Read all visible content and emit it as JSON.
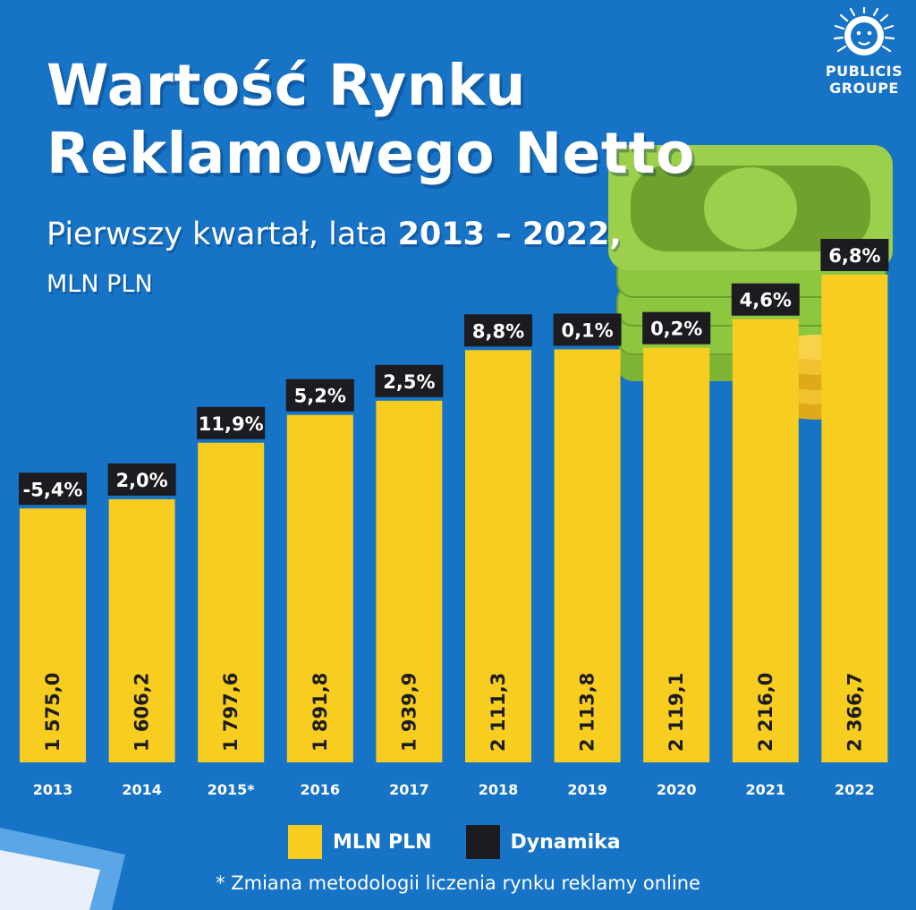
{
  "header": {
    "title_line1": "Wartość Rynku",
    "title_line2": "Reklamowego Netto",
    "subtitle_prefix": "Pierwszy kwartał, lata ",
    "subtitle_years": "2013 – 2022,",
    "unit": "MLN PLN"
  },
  "brand": {
    "line1": "PUBLICIS",
    "line2": "GROUPE",
    "logo_icon": "lion-head-icon"
  },
  "colors": {
    "background": "#1673c6",
    "bar": "#f7cd1f",
    "label_box": "#1c1c20",
    "text": "#ffffff",
    "money_green": "#8dc63f"
  },
  "chart_data": {
    "type": "bar",
    "categories": [
      "2013",
      "2014",
      "2015*",
      "2016",
      "2017",
      "2018",
      "2019",
      "2020",
      "2021",
      "2022"
    ],
    "series": [
      {
        "name": "MLN PLN",
        "values": [
          1575.0,
          1606.2,
          1797.6,
          1891.8,
          1939.9,
          2111.3,
          2113.8,
          2119.1,
          2216.0,
          2366.7
        ]
      },
      {
        "name": "Dynamika",
        "values": [
          -5.4,
          2.0,
          11.9,
          5.2,
          2.5,
          8.8,
          0.1,
          0.2,
          4.6,
          6.8
        ]
      }
    ],
    "value_labels": [
      "1 575,0",
      "1 606,2",
      "1 797,6",
      "1 891,8",
      "1 939,9",
      "2 111,3",
      "2 113,8",
      "2 119,1",
      "2 216,0",
      "2 366,7"
    ],
    "dynamics_labels": [
      "-5,4%",
      "2,0%",
      "11,9%",
      "5,2%",
      "2,5%",
      "8,8%",
      "0,1%",
      "0,2%",
      "4,6%",
      "6,8%"
    ],
    "ylim": [
      0,
      2400
    ],
    "grid": false,
    "legend_position": "bottom-center"
  },
  "legend": {
    "items": [
      {
        "label": "MLN PLN",
        "color": "#f7cd1f"
      },
      {
        "label": "Dynamika",
        "color": "#1c1c20"
      }
    ]
  },
  "footnote": "* Zmiana metodologii liczenia rynku reklamy online"
}
